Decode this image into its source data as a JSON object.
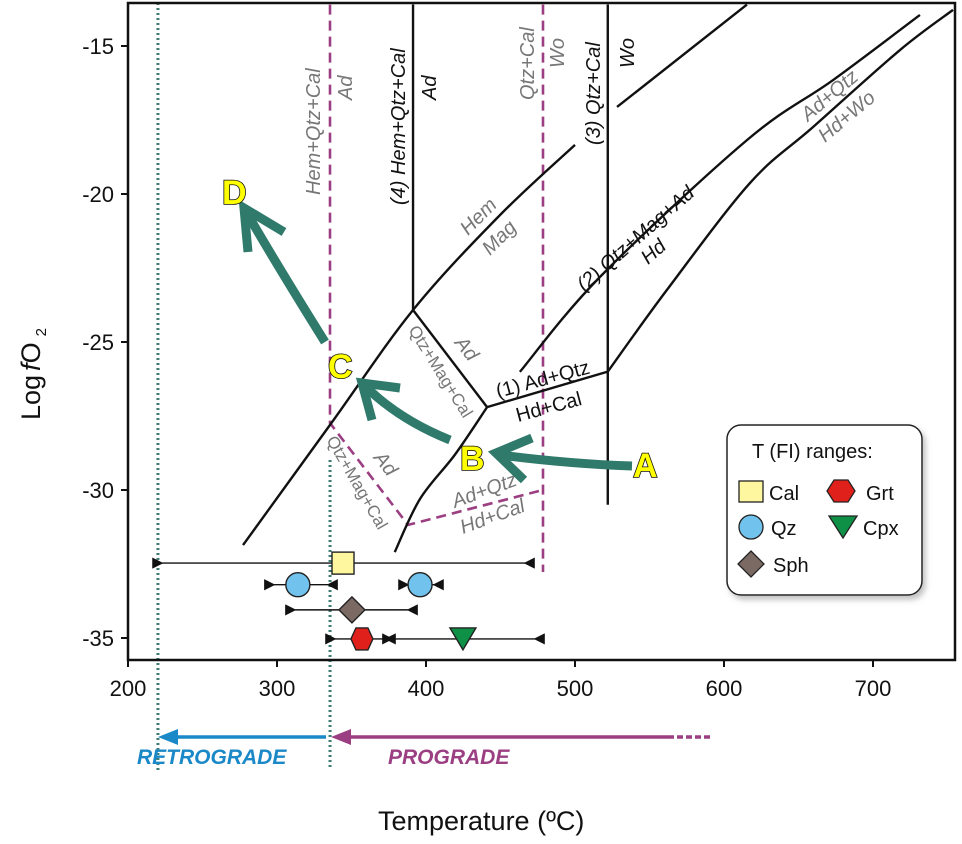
{
  "chart_data": {
    "type": "phase-diagram",
    "xlabel": "Temperature (ºC)",
    "ylabel_parts": [
      "Log",
      "f",
      "O",
      "2"
    ],
    "xlim": [
      200,
      755
    ],
    "ylim": [
      -35.8,
      -13.6
    ],
    "xticks": [
      200,
      300,
      400,
      500,
      600,
      700
    ],
    "yticks": [
      -15,
      -20,
      -25,
      -30,
      -35
    ],
    "colors": {
      "line": "#111111",
      "boundary": "#9b3f82",
      "dotted": "#3d7b73",
      "path_arrow": "#2f7a6b",
      "retrograde": "#1b88c8",
      "prograde": "#9b3f82"
    },
    "reaction_lines": [
      {
        "name": "hem-mag",
        "points": [
          [
            277.2,
            -31.86
          ],
          [
            335.6,
            -27.8
          ],
          [
            391.3,
            -23.92
          ],
          [
            449.7,
            -20.71
          ],
          [
            500,
            -18.34
          ]
        ]
      },
      {
        "name": "reaction-4",
        "points": [
          [
            391.3,
            -13.6
          ],
          [
            391.3,
            -23.92
          ]
        ]
      },
      {
        "name": "qtz-mag-cal-ad",
        "points": [
          [
            391.3,
            -23.92
          ],
          [
            441,
            -27.2
          ]
        ]
      },
      {
        "name": "reaction-1",
        "points": [
          [
            441,
            -27.2
          ],
          [
            522,
            -26.0
          ]
        ]
      },
      {
        "name": "b-line",
        "points": [
          [
            441,
            -27.2
          ],
          [
            419.5,
            -28.8
          ],
          [
            396,
            -30.3
          ],
          [
            379,
            -32.1
          ]
        ]
      },
      {
        "name": "reaction-3",
        "points": [
          [
            522,
            -13.6
          ],
          [
            522,
            -30.5
          ]
        ]
      },
      {
        "name": "wo-line",
        "points": [
          [
            528.2,
            -17.06
          ],
          [
            615.4,
            -13.6
          ]
        ]
      },
      {
        "name": "reaction-2",
        "points": [
          [
            463,
            -26.01
          ],
          [
            516.8,
            -22.8
          ],
          [
            615.4,
            -18.18
          ],
          [
            673.2,
            -16.15
          ],
          [
            731.5,
            -13.95
          ]
        ]
      },
      {
        "name": "ad-qtz-hd-wo",
        "points": [
          [
            522,
            -26.0
          ],
          [
            561.7,
            -23.24
          ],
          [
            617.4,
            -19.63
          ],
          [
            659.7,
            -17.74
          ],
          [
            718,
            -15.14
          ],
          [
            753.7,
            -13.78
          ]
        ]
      }
    ],
    "boundary_lines": [
      {
        "name": "boundary-left",
        "points": [
          [
            335.6,
            -13.6
          ],
          [
            335.6,
            -27.74
          ],
          [
            387.9,
            -31.18
          ],
          [
            478.5,
            -30.0
          ]
        ]
      },
      {
        "name": "boundary-right",
        "points": [
          [
            478.5,
            -13.6
          ],
          [
            478.5,
            -32.77
          ]
        ]
      }
    ],
    "dotted_temps": [
      220.1,
      335.6
    ],
    "fi_ranges": [
      {
        "mineral": "Cal",
        "shape": "square",
        "color": "#fff7a0",
        "fO2": -32.47,
        "min": 221.5,
        "max": 467.8,
        "value": 344.3
      },
      {
        "mineral": "Qz",
        "shape": "circle",
        "color": "#71c3ee",
        "fO2": -33.2,
        "min": 296.6,
        "max": 335.6,
        "value": 314
      },
      {
        "mineral": "Qz",
        "shape": "circle",
        "color": "#71c3ee",
        "fO2": -33.2,
        "min": 386.6,
        "max": 406.7,
        "value": 396
      },
      {
        "mineral": "Sph",
        "shape": "diamond",
        "color": "#7a6a63",
        "fO2": -34.05,
        "min": 310.7,
        "max": 389.3,
        "value": 350.3
      },
      {
        "mineral": "Grt",
        "shape": "hexagon",
        "color": "#e0201b",
        "fO2": -35.03,
        "min": 337.6,
        "max": 374.5,
        "value": 357
      },
      {
        "mineral": "Cpx",
        "shape": "triangle",
        "color": "#0f9047",
        "fO2": -35.03,
        "min": 375.8,
        "max": 474.5,
        "value": 424.8
      }
    ]
  },
  "labels": {
    "hem_qtz_cal_gray": "Hem+Qtz+Cal",
    "ad_gray_top": "Ad",
    "r4_top": "(4) Hem+Qtz+Cal",
    "r4_bottom": "Ad",
    "qtz_cal_gray": "Qtz+Cal",
    "wo_gray": "Wo",
    "r3_top": "(3) Qtz+Cal",
    "r3_bottom": "Wo",
    "hem": "Hem",
    "mag": "Mag",
    "r2_top": "(2) Qtz+Mag+Ad",
    "r2_bottom": "Hd",
    "adqtz_gray_top": "Ad+Qtz",
    "hdwo_gray": "Hd+Wo",
    "ad_mid": "Ad",
    "qmc_mid": "Qtz+Mag+Cal",
    "r1_top": "(1) Ad+Qtz",
    "r1_bottom": "Hd+Cal",
    "ad_low": "Ad",
    "qmc_low": "Qtz+Mag+Cal",
    "adqtz_low": "Ad+Qtz",
    "hdcal_low": "Hd+Cal"
  },
  "points": {
    "A": "A",
    "B": "B",
    "C": "C",
    "D": "D"
  },
  "legend": {
    "title": "T (FI) ranges:",
    "items": [
      "Cal",
      "Grt",
      "Qz",
      "Cpx",
      "Sph"
    ]
  },
  "stages": {
    "retrograde": "RETROGRADE",
    "prograde": "PROGRADE"
  }
}
